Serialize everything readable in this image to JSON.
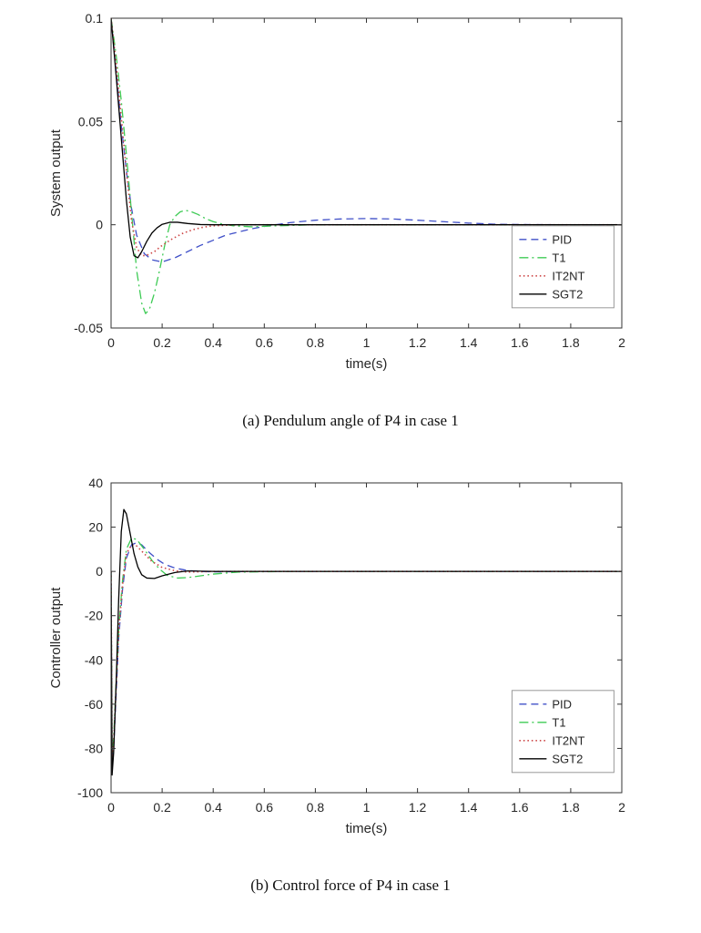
{
  "page": {
    "background": "#ffffff",
    "axes_color": "#333333",
    "text_color": "#262626"
  },
  "chart_data": [
    {
      "type": "line",
      "title": "",
      "xlabel": "time(s)",
      "ylabel": "System output",
      "xlim": [
        0,
        2
      ],
      "ylim": [
        -0.05,
        0.1
      ],
      "grid": false,
      "xticks": [
        0,
        0.2,
        0.4,
        0.6,
        0.8,
        1,
        1.2,
        1.4,
        1.6,
        1.8,
        2
      ],
      "xtick_labels": [
        "0",
        "0.2",
        "0.4",
        "0.6",
        "0.8",
        "1",
        "1.2",
        "1.4",
        "1.6",
        "1.8",
        "2"
      ],
      "yticks": [
        -0.05,
        0,
        0.05,
        0.1
      ],
      "ytick_labels": [
        "-0.05",
        "0",
        "0.05",
        "0.1"
      ],
      "legend": {
        "position": "inside-bottom-right",
        "x": 0.785,
        "y": 0.67,
        "entries": [
          "PID",
          "T1",
          "IT2NT",
          "SGT2"
        ]
      },
      "caption": "(a) Pendulum angle of P4 in case 1",
      "series": [
        {
          "name": "PID",
          "color": "#4050c8",
          "style": "dashed",
          "x": [
            0,
            0.02,
            0.04,
            0.06,
            0.08,
            0.1,
            0.13,
            0.16,
            0.2,
            0.25,
            0.3,
            0.35,
            0.4,
            0.45,
            0.5,
            0.55,
            0.6,
            0.7,
            0.8,
            0.9,
            1.0,
            1.1,
            1.2,
            1.3,
            1.4,
            1.5,
            1.6,
            1.8,
            2.0
          ],
          "y": [
            0.1,
            0.074,
            0.048,
            0.026,
            0.008,
            -0.005,
            -0.014,
            -0.017,
            -0.018,
            -0.016,
            -0.013,
            -0.01,
            -0.0075,
            -0.005,
            -0.0035,
            -0.002,
            -0.0008,
            0.001,
            0.0022,
            0.0028,
            0.003,
            0.0028,
            0.0022,
            0.0015,
            0.0008,
            0.0003,
            0.0001,
            0,
            0
          ]
        },
        {
          "name": "T1",
          "color": "#3ecb55",
          "style": "dashdot",
          "x": [
            0,
            0.02,
            0.04,
            0.06,
            0.08,
            0.1,
            0.12,
            0.135,
            0.15,
            0.17,
            0.19,
            0.21,
            0.23,
            0.25,
            0.27,
            0.29,
            0.31,
            0.34,
            0.37,
            0.4,
            0.44,
            0.48,
            0.55,
            0.65,
            0.8,
            1.0,
            1.5,
            2.0
          ],
          "y": [
            0.1,
            0.082,
            0.06,
            0.034,
            0.006,
            -0.022,
            -0.038,
            -0.043,
            -0.041,
            -0.033,
            -0.022,
            -0.01,
            0.0,
            0.004,
            0.0062,
            0.007,
            0.0065,
            0.005,
            0.003,
            0.0015,
            0.0002,
            -0.0005,
            -0.001,
            -0.0005,
            0,
            0,
            0,
            0
          ]
        },
        {
          "name": "IT2NT",
          "color": "#cc4444",
          "style": "dotted",
          "x": [
            0,
            0.02,
            0.04,
            0.06,
            0.08,
            0.1,
            0.12,
            0.14,
            0.17,
            0.2,
            0.24,
            0.28,
            0.32,
            0.36,
            0.4,
            0.5,
            0.7,
            1.0,
            1.5,
            2.0
          ],
          "y": [
            0.1,
            0.078,
            0.052,
            0.026,
            0.002,
            -0.011,
            -0.015,
            -0.0148,
            -0.013,
            -0.01,
            -0.0068,
            -0.0042,
            -0.0024,
            -0.0012,
            -0.0005,
            0,
            0,
            0,
            0,
            0
          ]
        },
        {
          "name": "SGT2",
          "color": "#000000",
          "style": "solid",
          "x": [
            0,
            0.02,
            0.04,
            0.06,
            0.075,
            0.09,
            0.105,
            0.12,
            0.14,
            0.16,
            0.18,
            0.2,
            0.23,
            0.26,
            0.3,
            0.35,
            0.4,
            0.6,
            1.0,
            1.5,
            2.0
          ],
          "y": [
            0.1,
            0.072,
            0.042,
            0.012,
            -0.006,
            -0.015,
            -0.016,
            -0.013,
            -0.008,
            -0.004,
            -0.0015,
            0.0002,
            0.0012,
            0.0012,
            0.0006,
            0.0001,
            0,
            0,
            0,
            0,
            0
          ]
        }
      ]
    },
    {
      "type": "line",
      "title": "",
      "xlabel": "time(s)",
      "ylabel": "Controller output",
      "xlim": [
        0,
        2
      ],
      "ylim": [
        -100,
        40
      ],
      "grid": false,
      "xticks": [
        0,
        0.2,
        0.4,
        0.6,
        0.8,
        1,
        1.2,
        1.4,
        1.6,
        1.8,
        2
      ],
      "xtick_labels": [
        "0",
        "0.2",
        "0.4",
        "0.6",
        "0.8",
        "1",
        "1.2",
        "1.4",
        "1.6",
        "1.8",
        "2"
      ],
      "yticks": [
        -100,
        -80,
        -60,
        -40,
        -20,
        0,
        20,
        40
      ],
      "ytick_labels": [
        "-100",
        "-80",
        "-60",
        "-40",
        "-20",
        "0",
        "20",
        "40"
      ],
      "legend": {
        "position": "inside-bottom-right",
        "x": 0.785,
        "y": 0.67,
        "entries": [
          "PID",
          "T1",
          "IT2NT",
          "SGT2"
        ]
      },
      "caption": "(b) Control force of P4 in case 1",
      "series": [
        {
          "name": "PID",
          "color": "#4050c8",
          "style": "dashed",
          "x": [
            0,
            0.004,
            0.01,
            0.02,
            0.03,
            0.045,
            0.06,
            0.08,
            0.1,
            0.12,
            0.15,
            0.18,
            0.21,
            0.25,
            0.3,
            0.35,
            0.4,
            0.6,
            1.0,
            1.5,
            2.0
          ],
          "y": [
            0,
            -88,
            -80,
            -55,
            -30,
            -8,
            6,
            12,
            13,
            12,
            8.5,
            5.5,
            3.2,
            1.5,
            0.4,
            0,
            -0.2,
            0,
            0,
            0,
            0
          ]
        },
        {
          "name": "T1",
          "color": "#3ecb55",
          "style": "dashdot",
          "x": [
            0,
            0.004,
            0.01,
            0.02,
            0.03,
            0.045,
            0.06,
            0.08,
            0.1,
            0.13,
            0.16,
            0.19,
            0.22,
            0.26,
            0.3,
            0.35,
            0.4,
            0.5,
            0.7,
            1.0,
            1.5,
            2.0
          ],
          "y": [
            0,
            -85,
            -76,
            -50,
            -26,
            -4,
            10,
            15,
            14.5,
            10,
            5,
            1,
            -1.8,
            -3,
            -2.8,
            -2,
            -1.2,
            -0.3,
            0,
            0,
            0,
            0
          ]
        },
        {
          "name": "IT2NT",
          "color": "#cc4444",
          "style": "dotted",
          "x": [
            0,
            0.004,
            0.01,
            0.02,
            0.03,
            0.045,
            0.06,
            0.08,
            0.1,
            0.13,
            0.16,
            0.2,
            0.25,
            0.3,
            0.4,
            0.6,
            1.0,
            1.5,
            2.0
          ],
          "y": [
            0,
            -87,
            -78,
            -52,
            -27,
            -6,
            8,
            12,
            11.5,
            8,
            4.5,
            1.8,
            0.3,
            -0.3,
            0,
            0,
            0,
            0,
            0
          ]
        },
        {
          "name": "SGT2",
          "color": "#000000",
          "style": "solid",
          "x": [
            0,
            0.004,
            0.01,
            0.02,
            0.03,
            0.04,
            0.05,
            0.06,
            0.075,
            0.09,
            0.105,
            0.12,
            0.14,
            0.17,
            0.2,
            0.25,
            0.3,
            0.4,
            0.6,
            1.0,
            1.5,
            2.0
          ],
          "y": [
            0,
            -92,
            -82,
            -50,
            -12,
            18,
            28,
            26,
            17,
            8,
            2,
            -1.5,
            -3,
            -3.2,
            -2,
            -0.5,
            0.2,
            0,
            0,
            0,
            0,
            0
          ]
        }
      ]
    }
  ]
}
